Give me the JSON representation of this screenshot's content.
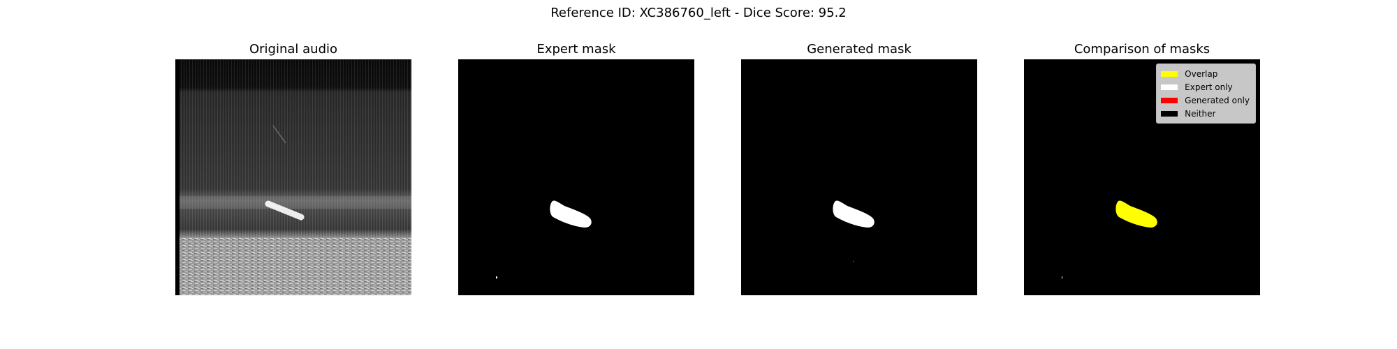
{
  "figure": {
    "suptitle": "Reference ID: XC386760_left - Dice Score: 95.2"
  },
  "panels": [
    {
      "title": "Original audio"
    },
    {
      "title": "Expert mask"
    },
    {
      "title": "Generated mask"
    },
    {
      "title": "Comparison of masks"
    }
  ],
  "legend": [
    {
      "label": "Overlap",
      "color": "#ffff00"
    },
    {
      "label": "Expert only",
      "color": "#ffffff"
    },
    {
      "label": "Generated only",
      "color": "#ff0000"
    },
    {
      "label": "Neither",
      "color": "#000000"
    }
  ]
}
